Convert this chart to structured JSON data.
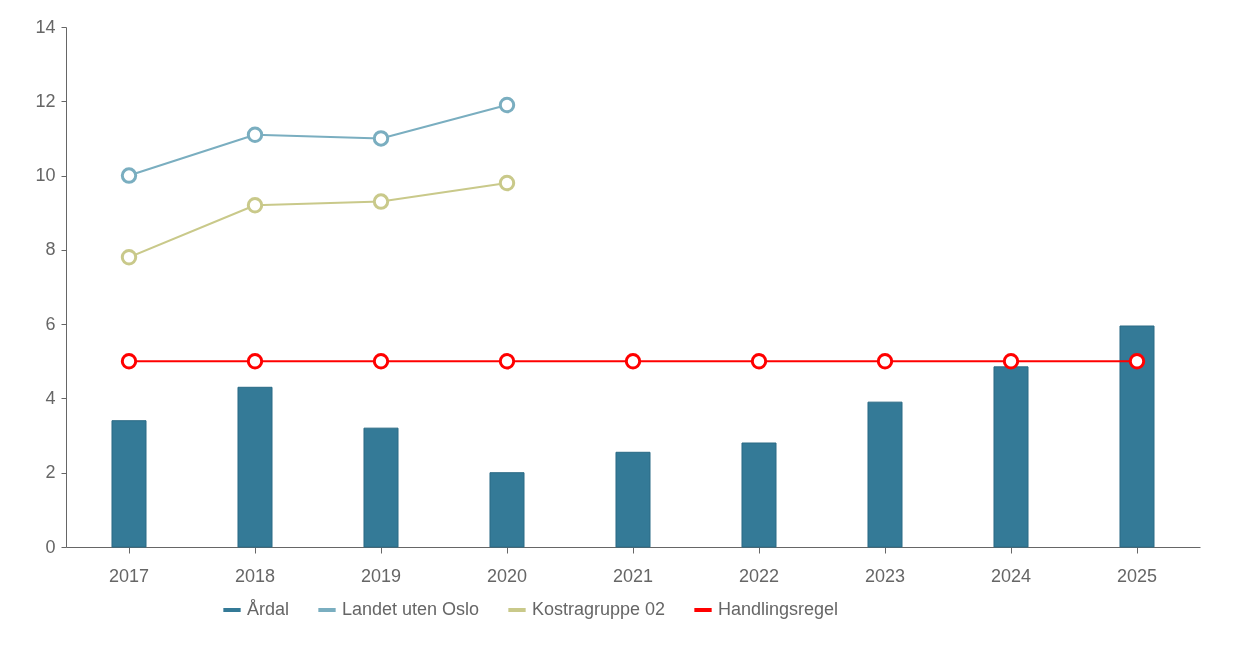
{
  "chart_data": {
    "type": "bar",
    "categories": [
      "2017",
      "2018",
      "2019",
      "2020",
      "2021",
      "2022",
      "2023",
      "2024",
      "2025"
    ],
    "series": [
      {
        "name": "Årdal",
        "color": "#347a97",
        "values": [
          3.4,
          4.3,
          3.2,
          2.0,
          2.55,
          2.8,
          3.9,
          4.85,
          5.95
        ]
      },
      {
        "name": "Landet uten Oslo",
        "type": "line",
        "color": "#7aaec0",
        "values": [
          10.0,
          11.1,
          11.0,
          11.9,
          null,
          null,
          null,
          null,
          null
        ]
      },
      {
        "name": "Kostragruppe 02",
        "type": "line",
        "color": "#c9c98a",
        "values": [
          7.8,
          9.2,
          9.3,
          9.8,
          null,
          null,
          null,
          null,
          null
        ]
      },
      {
        "name": "Handlingsregel",
        "type": "line",
        "color": "#ff0000",
        "values": [
          5,
          5,
          5,
          5,
          5,
          5,
          5,
          5,
          5
        ]
      }
    ],
    "ylim": [
      0,
      14
    ],
    "yticks": [
      0,
      2,
      4,
      6,
      8,
      10,
      12,
      14
    ],
    "legend": "bottom",
    "marker": "circle"
  }
}
